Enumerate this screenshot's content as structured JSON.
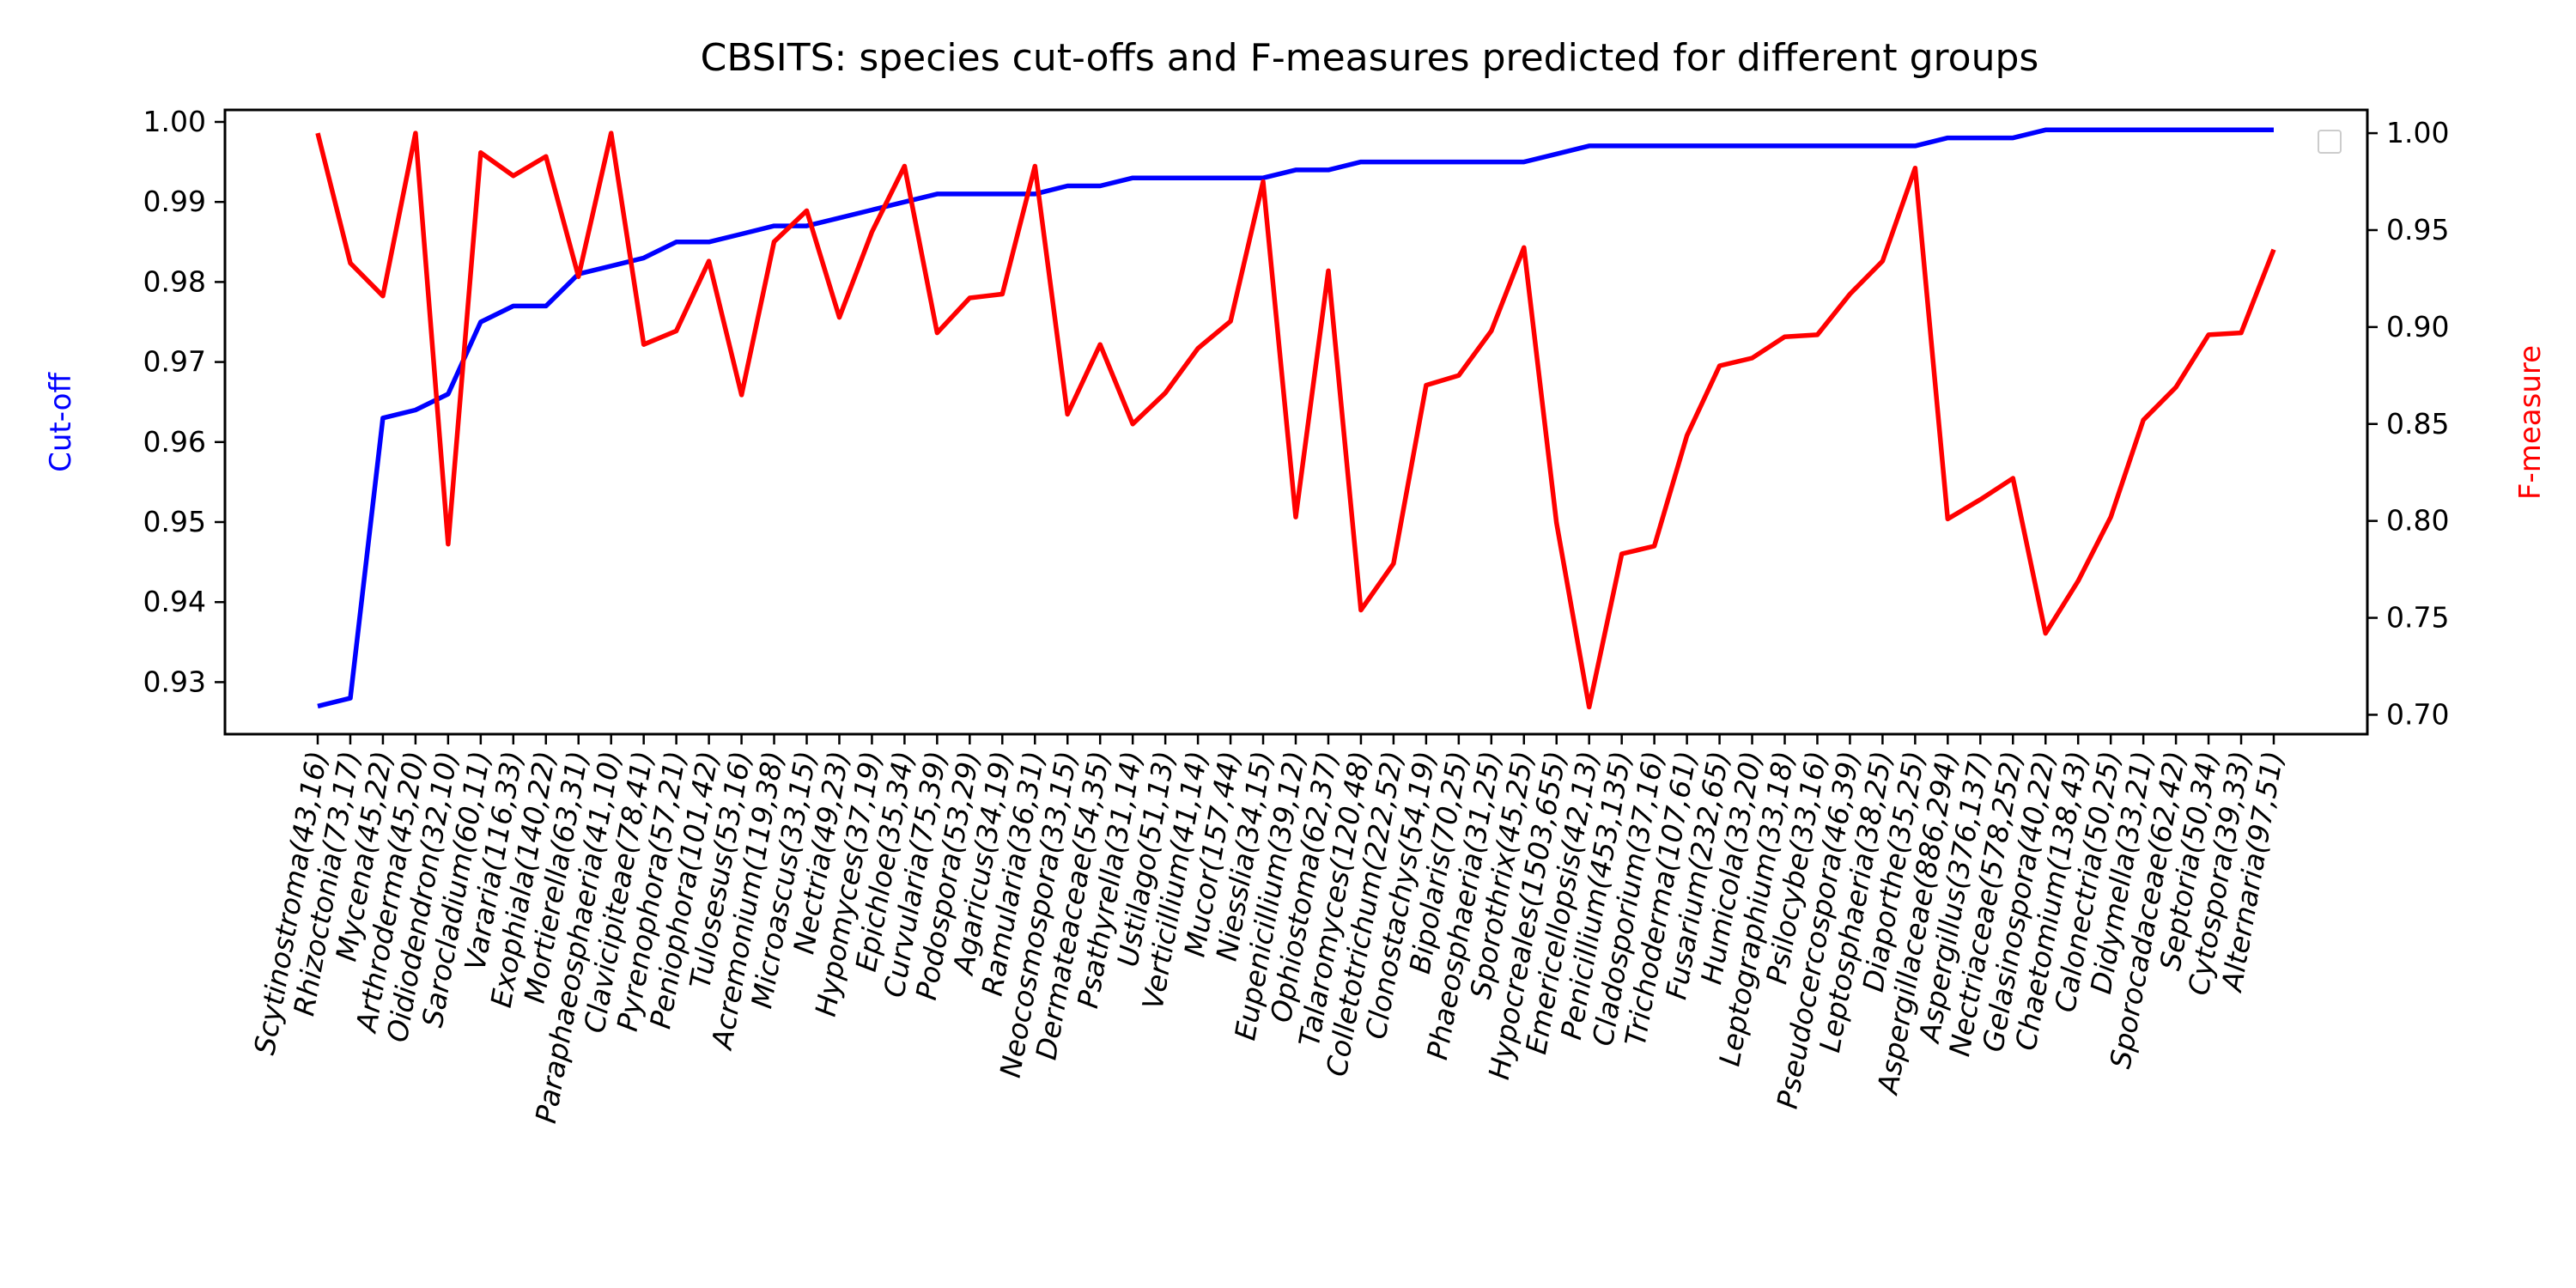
{
  "chart_data": {
    "type": "line",
    "title": "CBSITS: species cut-offs and F-measures predicted for different groups",
    "ylabel_left": "Cut-off",
    "ylabel_right": "F-measure",
    "ylim_left": [
      0.9235,
      1.0015
    ],
    "ylim_right": [
      0.69,
      1.012
    ],
    "left_ticks": [
      "0.93",
      "0.94",
      "0.95",
      "0.96",
      "0.97",
      "0.98",
      "0.99",
      "1.00"
    ],
    "right_ticks": [
      "0.70",
      "0.75",
      "0.80",
      "0.85",
      "0.90",
      "0.95",
      "1.00"
    ],
    "legend": "top-right (empty)",
    "grid": false,
    "colors": {
      "cutoff": "#0000ff",
      "fmeasure": "#ff0000"
    },
    "categories": [
      "Scytinostroma(43,16)",
      "Rhizoctonia(73,17)",
      "Mycena(45,22)",
      "Arthroderma(45,20)",
      "Oidiodendron(32,10)",
      "Sarocladium(60,11)",
      "Vararia(116,33)",
      "Exophiala(140,22)",
      "Mortierella(63,31)",
      "Paraphaeosphaeria(41,10)",
      "Clavicipiteae(78,41)",
      "Pyrenophora(57,21)",
      "Peniophora(101,42)",
      "Tulosesus(53,16)",
      "Acremonium(119,38)",
      "Microascus(33,15)",
      "Nectria(49,23)",
      "Hypomyces(37,19)",
      "Epichloe(35,34)",
      "Curvularia(75,39)",
      "Podospora(53,29)",
      "Agaricus(34,19)",
      "Ramularia(36,31)",
      "Neocosmospora(33,15)",
      "Dermateaceae(54,35)",
      "Psathyrella(31,14)",
      "Ustilago(51,13)",
      "Verticillium(41,14)",
      "Mucor(157,44)",
      "Niesslia(34,15)",
      "Eupenicillium(39,12)",
      "Ophiostoma(62,37)",
      "Talaromyces(120,48)",
      "Colletotrichum(222,52)",
      "Clonostachys(54,19)",
      "Bipolaris(70,25)",
      "Phaeosphaeria(31,25)",
      "Sporothrix(45,25)",
      "Hypocreales(1503,655)",
      "Emericellopsis(42,13)",
      "Penicillium(453,135)",
      "Cladosporium(37,16)",
      "Trichoderma(107,61)",
      "Fusarium(232,65)",
      "Humicola(33,20)",
      "Leptographium(33,18)",
      "Psilocybe(33,16)",
      "Pseudocercospora(46,39)",
      "Leptosphaeria(38,25)",
      "Diaporthe(35,25)",
      "Aspergillaceae(886,294)",
      "Aspergillus(376,137)",
      "Nectriaceae(578,252)",
      "Gelasinospora(40,22)",
      "Chaetomium(138,43)",
      "Calonectria(50,25)",
      "Didymella(33,21)",
      "Sporocadaceae(62,42)",
      "Septoria(50,34)",
      "Cytospora(39,33)",
      "Alternaria(97,51)"
    ],
    "series": [
      {
        "name": "Cut-off",
        "axis": "left",
        "values": [
          0.927,
          0.928,
          0.963,
          0.964,
          0.966,
          0.975,
          0.977,
          0.977,
          0.981,
          0.982,
          0.983,
          0.985,
          0.985,
          0.986,
          0.987,
          0.987,
          0.988,
          0.989,
          0.99,
          0.991,
          0.991,
          0.991,
          0.991,
          0.992,
          0.992,
          0.993,
          0.993,
          0.993,
          0.993,
          0.993,
          0.994,
          0.994,
          0.995,
          0.995,
          0.995,
          0.995,
          0.995,
          0.995,
          0.996,
          0.997,
          0.997,
          0.997,
          0.997,
          0.997,
          0.997,
          0.997,
          0.997,
          0.997,
          0.997,
          0.997,
          0.998,
          0.998,
          0.998,
          0.999,
          0.999,
          0.999,
          0.999,
          0.999,
          0.999,
          0.999,
          0.999
        ]
      },
      {
        "name": "F-measure",
        "axis": "right",
        "values": [
          1.0,
          0.933,
          0.916,
          1.0,
          0.788,
          0.99,
          0.978,
          0.988,
          0.926,
          1.0,
          0.891,
          0.898,
          0.934,
          0.865,
          0.944,
          0.96,
          0.905,
          0.949,
          0.983,
          0.897,
          0.915,
          0.917,
          0.983,
          0.855,
          0.891,
          0.85,
          0.866,
          0.889,
          0.903,
          0.975,
          0.802,
          0.929,
          0.754,
          0.778,
          0.87,
          0.875,
          0.898,
          0.941,
          0.799,
          0.704,
          0.783,
          0.787,
          0.844,
          0.88,
          0.884,
          0.895,
          0.896,
          0.917,
          0.934,
          0.982,
          0.801,
          0.811,
          0.822,
          0.742,
          0.769,
          0.802,
          0.852,
          0.869,
          0.896,
          0.897,
          0.94
        ]
      }
    ]
  }
}
